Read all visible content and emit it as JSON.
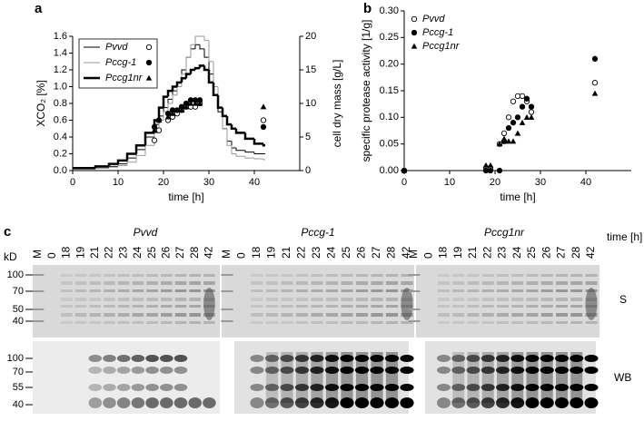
{
  "chart_data": [
    {
      "panel": "a",
      "type": "line",
      "xlabel": "time [h]",
      "ylabel": "XCO₂ [%]",
      "y2label": "cell dry mass [g/L]",
      "xlim": [
        0,
        50
      ],
      "xticks": [
        0,
        10,
        20,
        30,
        40
      ],
      "ylim": [
        0,
        1.6
      ],
      "yticks": [
        {
          "value": 0,
          "label": "0.0"
        },
        0.2,
        0.4,
        0.6,
        0.8,
        {
          "value": 1,
          "label": "1.0"
        },
        1.2,
        1.4,
        1.6
      ],
      "y2lim": [
        0,
        20
      ],
      "y2ticks": [
        0,
        5,
        10,
        15,
        20
      ],
      "legend": "upper left",
      "x": [
        0,
        5,
        8,
        10,
        12,
        14,
        16,
        18,
        19,
        20,
        21,
        22,
        23,
        24,
        25,
        26,
        27,
        28,
        29,
        30,
        31,
        32,
        33,
        34,
        35,
        36,
        38,
        40,
        42
      ],
      "y2_x": [
        18,
        19,
        21,
        22,
        23,
        24,
        25,
        26,
        27,
        28,
        42
      ],
      "series": [
        {
          "name": "Pvvd",
          "color": "#000000",
          "line_width": 1,
          "marker": "open-circle",
          "values": [
            0.02,
            0.03,
            0.05,
            0.08,
            0.15,
            0.25,
            0.4,
            0.55,
            0.65,
            0.75,
            0.85,
            0.95,
            1.05,
            1.2,
            1.35,
            1.45,
            1.5,
            1.45,
            1.35,
            1.15,
            0.9,
            0.7,
            0.5,
            0.35,
            0.27,
            0.24,
            0.22,
            0.2,
            0.2
          ],
          "y2_values": [
            4.5,
            6,
            7.5,
            8,
            8.5,
            9,
            9.5,
            9.5,
            9.5,
            10,
            7.5
          ]
        },
        {
          "name": "Pccg-1",
          "color": "#999999",
          "line_width": 1,
          "marker": "circle",
          "values": [
            0.02,
            0.03,
            0.04,
            0.06,
            0.1,
            0.18,
            0.3,
            0.45,
            0.6,
            0.7,
            0.8,
            0.9,
            1.0,
            1.15,
            1.35,
            1.5,
            1.6,
            1.6,
            1.55,
            1.3,
            1.0,
            0.75,
            0.5,
            0.3,
            0.2,
            0.17,
            0.15,
            0.14,
            0.13
          ],
          "y2_values": [
            6.5,
            7.5,
            8.5,
            9,
            9,
            9.5,
            10,
            10.5,
            10.5,
            10.5,
            6.5
          ]
        },
        {
          "name": "Pccg1nr",
          "color": "#000000",
          "line_width": 2.5,
          "marker": "triangle",
          "values": [
            0.03,
            0.05,
            0.08,
            0.12,
            0.2,
            0.3,
            0.45,
            0.6,
            0.75,
            0.88,
            0.95,
            1.0,
            1.05,
            1.1,
            1.15,
            1.2,
            1.22,
            1.25,
            1.2,
            1.05,
            0.9,
            0.75,
            0.65,
            0.55,
            0.5,
            0.45,
            0.38,
            0.32,
            0.3
          ],
          "y2_values": [
            6,
            7.5,
            8,
            8.5,
            9,
            9,
            9.5,
            10,
            10,
            10,
            9.5
          ]
        }
      ]
    },
    {
      "panel": "b",
      "type": "scatter",
      "xlabel": "time [h]",
      "ylabel": "specific protease activity [1/g]",
      "xlim": [
        0,
        50
      ],
      "xticks": [
        0,
        10,
        20,
        30,
        40
      ],
      "ylim": [
        0,
        0.3
      ],
      "yticks": [
        {
          "value": 0,
          "label": "0.00"
        },
        {
          "value": 0.05,
          "label": "0.05"
        },
        {
          "value": 0.1,
          "label": "0.10"
        },
        {
          "value": 0.15,
          "label": "0.15"
        },
        {
          "value": 0.2,
          "label": "0.20"
        },
        {
          "value": 0.25,
          "label": "0.25"
        },
        {
          "value": 0.3,
          "label": "0.30"
        }
      ],
      "legend": "upper left",
      "x": [
        0,
        18,
        19,
        21,
        22,
        23,
        24,
        25,
        26,
        27,
        28,
        42
      ],
      "series": [
        {
          "name": "Pvvd",
          "color": "#000000",
          "marker": "open-circle",
          "values": [
            0,
            0.005,
            0.005,
            0.05,
            0.07,
            0.1,
            0.13,
            0.14,
            0.14,
            0.13,
            0.11,
            0.165
          ]
        },
        {
          "name": "Pccg-1",
          "color": "#000000",
          "marker": "circle",
          "values": [
            0,
            0,
            0,
            0,
            0.055,
            0.08,
            0.09,
            0.1,
            0.12,
            0.135,
            0.12,
            0.21
          ]
        },
        {
          "name": "Pccg1nr",
          "color": "#000000",
          "marker": "triangle",
          "values": [
            0,
            0.01,
            0.01,
            0.05,
            0.06,
            0.055,
            0.055,
            0.07,
            0.09,
            0.1,
            0.1,
            0.145
          ]
        }
      ]
    }
  ],
  "gel": {
    "panel": "c",
    "kd_label": "kD",
    "time_label": "time [h]",
    "groups": [
      "Pvvd",
      "Pccg-1",
      "Pccg1nr"
    ],
    "lanes": [
      "M",
      "0",
      "18",
      "19",
      "21",
      "22",
      "23",
      "24",
      "25",
      "26",
      "27",
      "28",
      "42"
    ],
    "kd_upper": [
      "100",
      "70",
      "50",
      "40"
    ],
    "kd_lower": [
      "100",
      "70",
      "55",
      "40"
    ],
    "blots": [
      "S",
      "WB"
    ]
  }
}
